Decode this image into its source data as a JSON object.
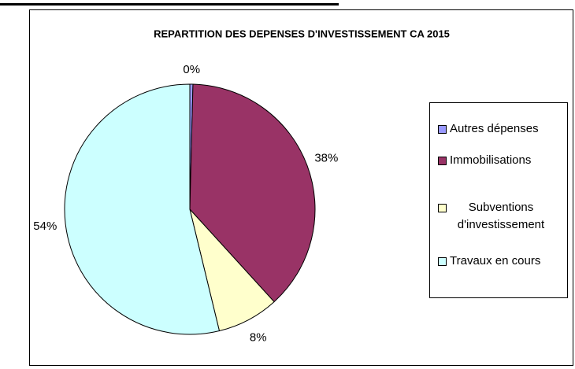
{
  "chart_data": {
    "type": "pie",
    "title": "REPARTITION DES DEPENSES D'INVESTISSEMENT CA 2015",
    "categories": [
      "Autres dépenses",
      "Immobilisations",
      "Subventions d'investissement",
      "Travaux en cours"
    ],
    "values": [
      0.4,
      38,
      8,
      54
    ],
    "value_labels": [
      "0%",
      "38%",
      "8%",
      "54%"
    ],
    "colors": [
      "#9999ff",
      "#993366",
      "#ffffcc",
      "#ccffff"
    ],
    "legend": "right"
  }
}
